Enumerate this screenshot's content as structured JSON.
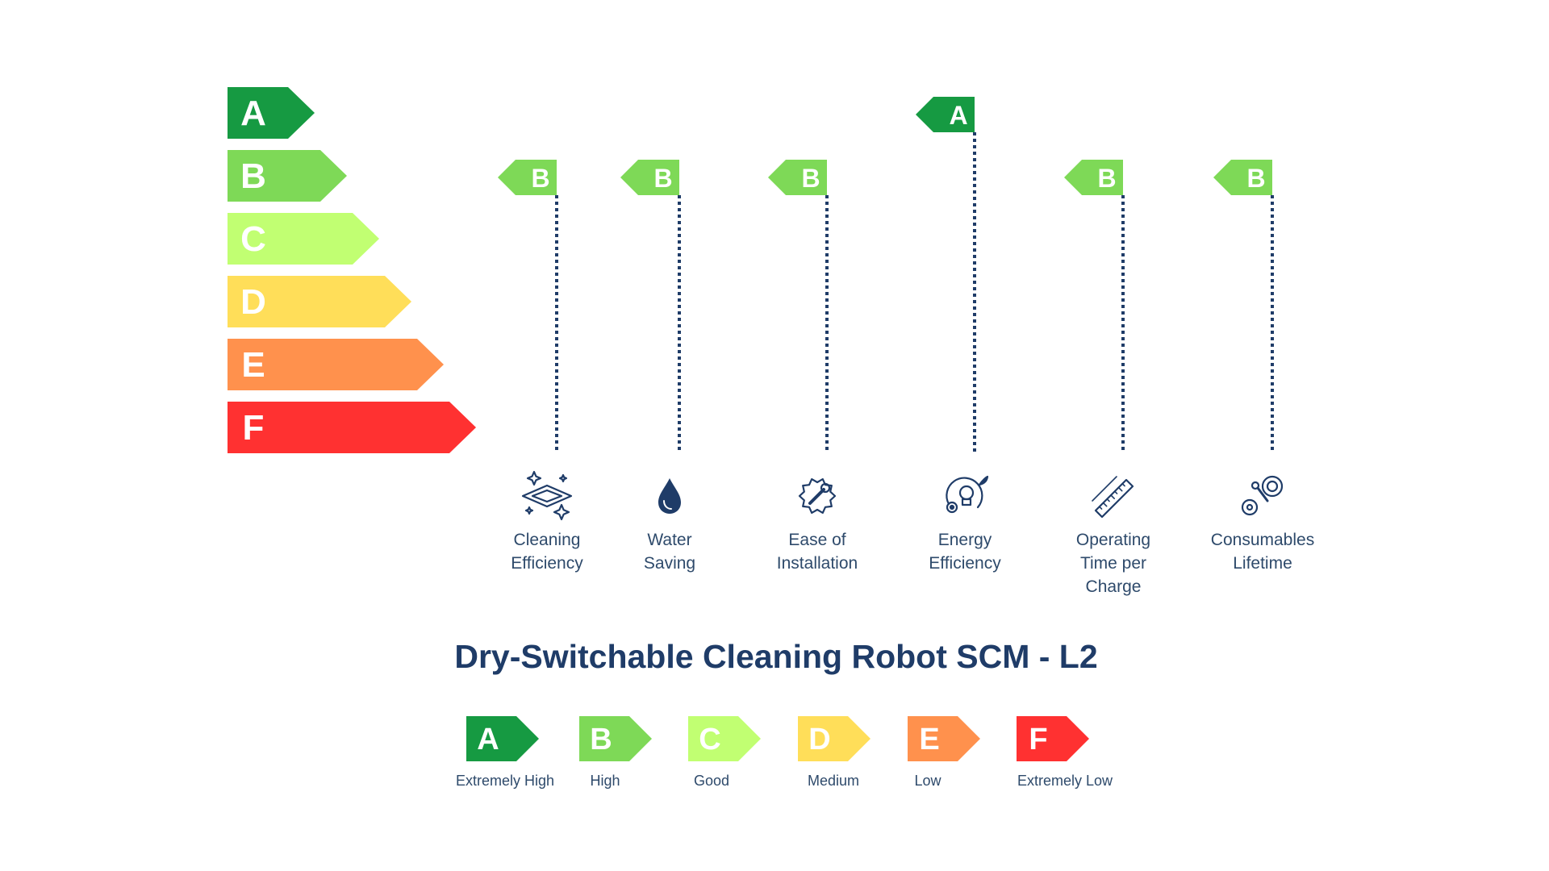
{
  "title": "Dry-Switchable Cleaning Robot SCM - L2",
  "colors": {
    "A": "#169a42",
    "B": "#7ed957",
    "C": "#c1ff72",
    "D": "#ffde59",
    "E": "#ff914d",
    "F": "#ff3131",
    "navy": "#1f3c68",
    "text": "#2e4a6b"
  },
  "scale": [
    "A",
    "B",
    "C",
    "D",
    "E",
    "F"
  ],
  "criteria": [
    {
      "name": "Cleaning Efficiency",
      "lines": [
        "Cleaning",
        "Efficiency"
      ],
      "rating": "B",
      "icon": "cleaning-sparkle-icon"
    },
    {
      "name": "Water Saving",
      "lines": [
        "Water",
        "Saving"
      ],
      "rating": "B",
      "icon": "water-drop-icon"
    },
    {
      "name": "Ease of Installation",
      "lines": [
        "Ease of",
        "Installation"
      ],
      "rating": "B",
      "icon": "wrench-gear-icon"
    },
    {
      "name": "Energy Efficiency",
      "lines": [
        "Energy",
        "Efficiency"
      ],
      "rating": "A",
      "icon": "lightbulb-gear-icon"
    },
    {
      "name": "Operating Time per Charge",
      "lines": [
        "Operating",
        "Time per",
        "Charge"
      ],
      "rating": "B",
      "icon": "ruler-icon"
    },
    {
      "name": "Consumables Lifetime",
      "lines": [
        "Consumables",
        "Lifetime"
      ],
      "rating": "B",
      "icon": "tools-gear-icon"
    }
  ],
  "legend": [
    {
      "grade": "A",
      "label": "Extremely High"
    },
    {
      "grade": "B",
      "label": "High"
    },
    {
      "grade": "C",
      "label": "Good"
    },
    {
      "grade": "D",
      "label": "Medium"
    },
    {
      "grade": "E",
      "label": "Low"
    },
    {
      "grade": "F",
      "label": "Extremely Low"
    }
  ]
}
